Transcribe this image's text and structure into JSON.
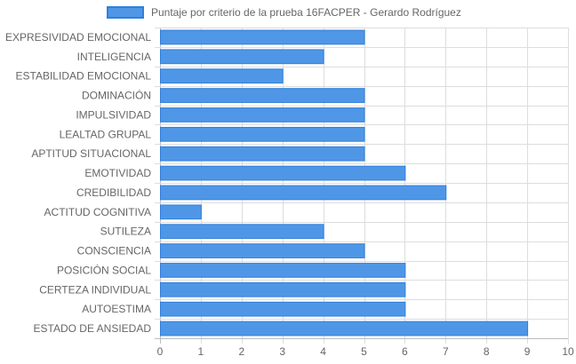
{
  "chart_data": {
    "type": "bar",
    "orientation": "horizontal",
    "title": "",
    "xlabel": "",
    "ylabel": "",
    "xlim": [
      0,
      10
    ],
    "x_ticks": [
      "0",
      "1",
      "2",
      "3",
      "4",
      "5",
      "6",
      "7",
      "8",
      "9",
      "10"
    ],
    "grid": true,
    "legend_position": "top",
    "colors": {
      "bar": "#4f97e6",
      "bar_border": "#2f7fdc",
      "grid": "#dddddd"
    },
    "categories": [
      "EXPRESIVIDAD EMOCIONAL",
      "INTELIGENCIA",
      "ESTABILIDAD EMOCIONAL",
      "DOMINACIÓN",
      "IMPULSIVIDAD",
      "LEALTAD GRUPAL",
      "APTITUD SITUACIONAL",
      "EMOTIVIDAD",
      "CREDIBILIDAD",
      "ACTITUD COGNITIVA",
      "SUTILEZA",
      "CONSCIENCIA",
      "POSICIÓN SOCIAL",
      "CERTEZA INDIVIDUAL",
      "AUTOESTIMA",
      "ESTADO DE ANSIEDAD"
    ],
    "series": [
      {
        "name": "Puntaje por criterio de la prueba 16FACPER - Gerardo Rodríguez",
        "values": [
          5,
          4,
          3,
          5,
          5,
          5,
          5,
          6,
          7,
          1,
          4,
          5,
          6,
          6,
          6,
          9
        ]
      }
    ]
  }
}
